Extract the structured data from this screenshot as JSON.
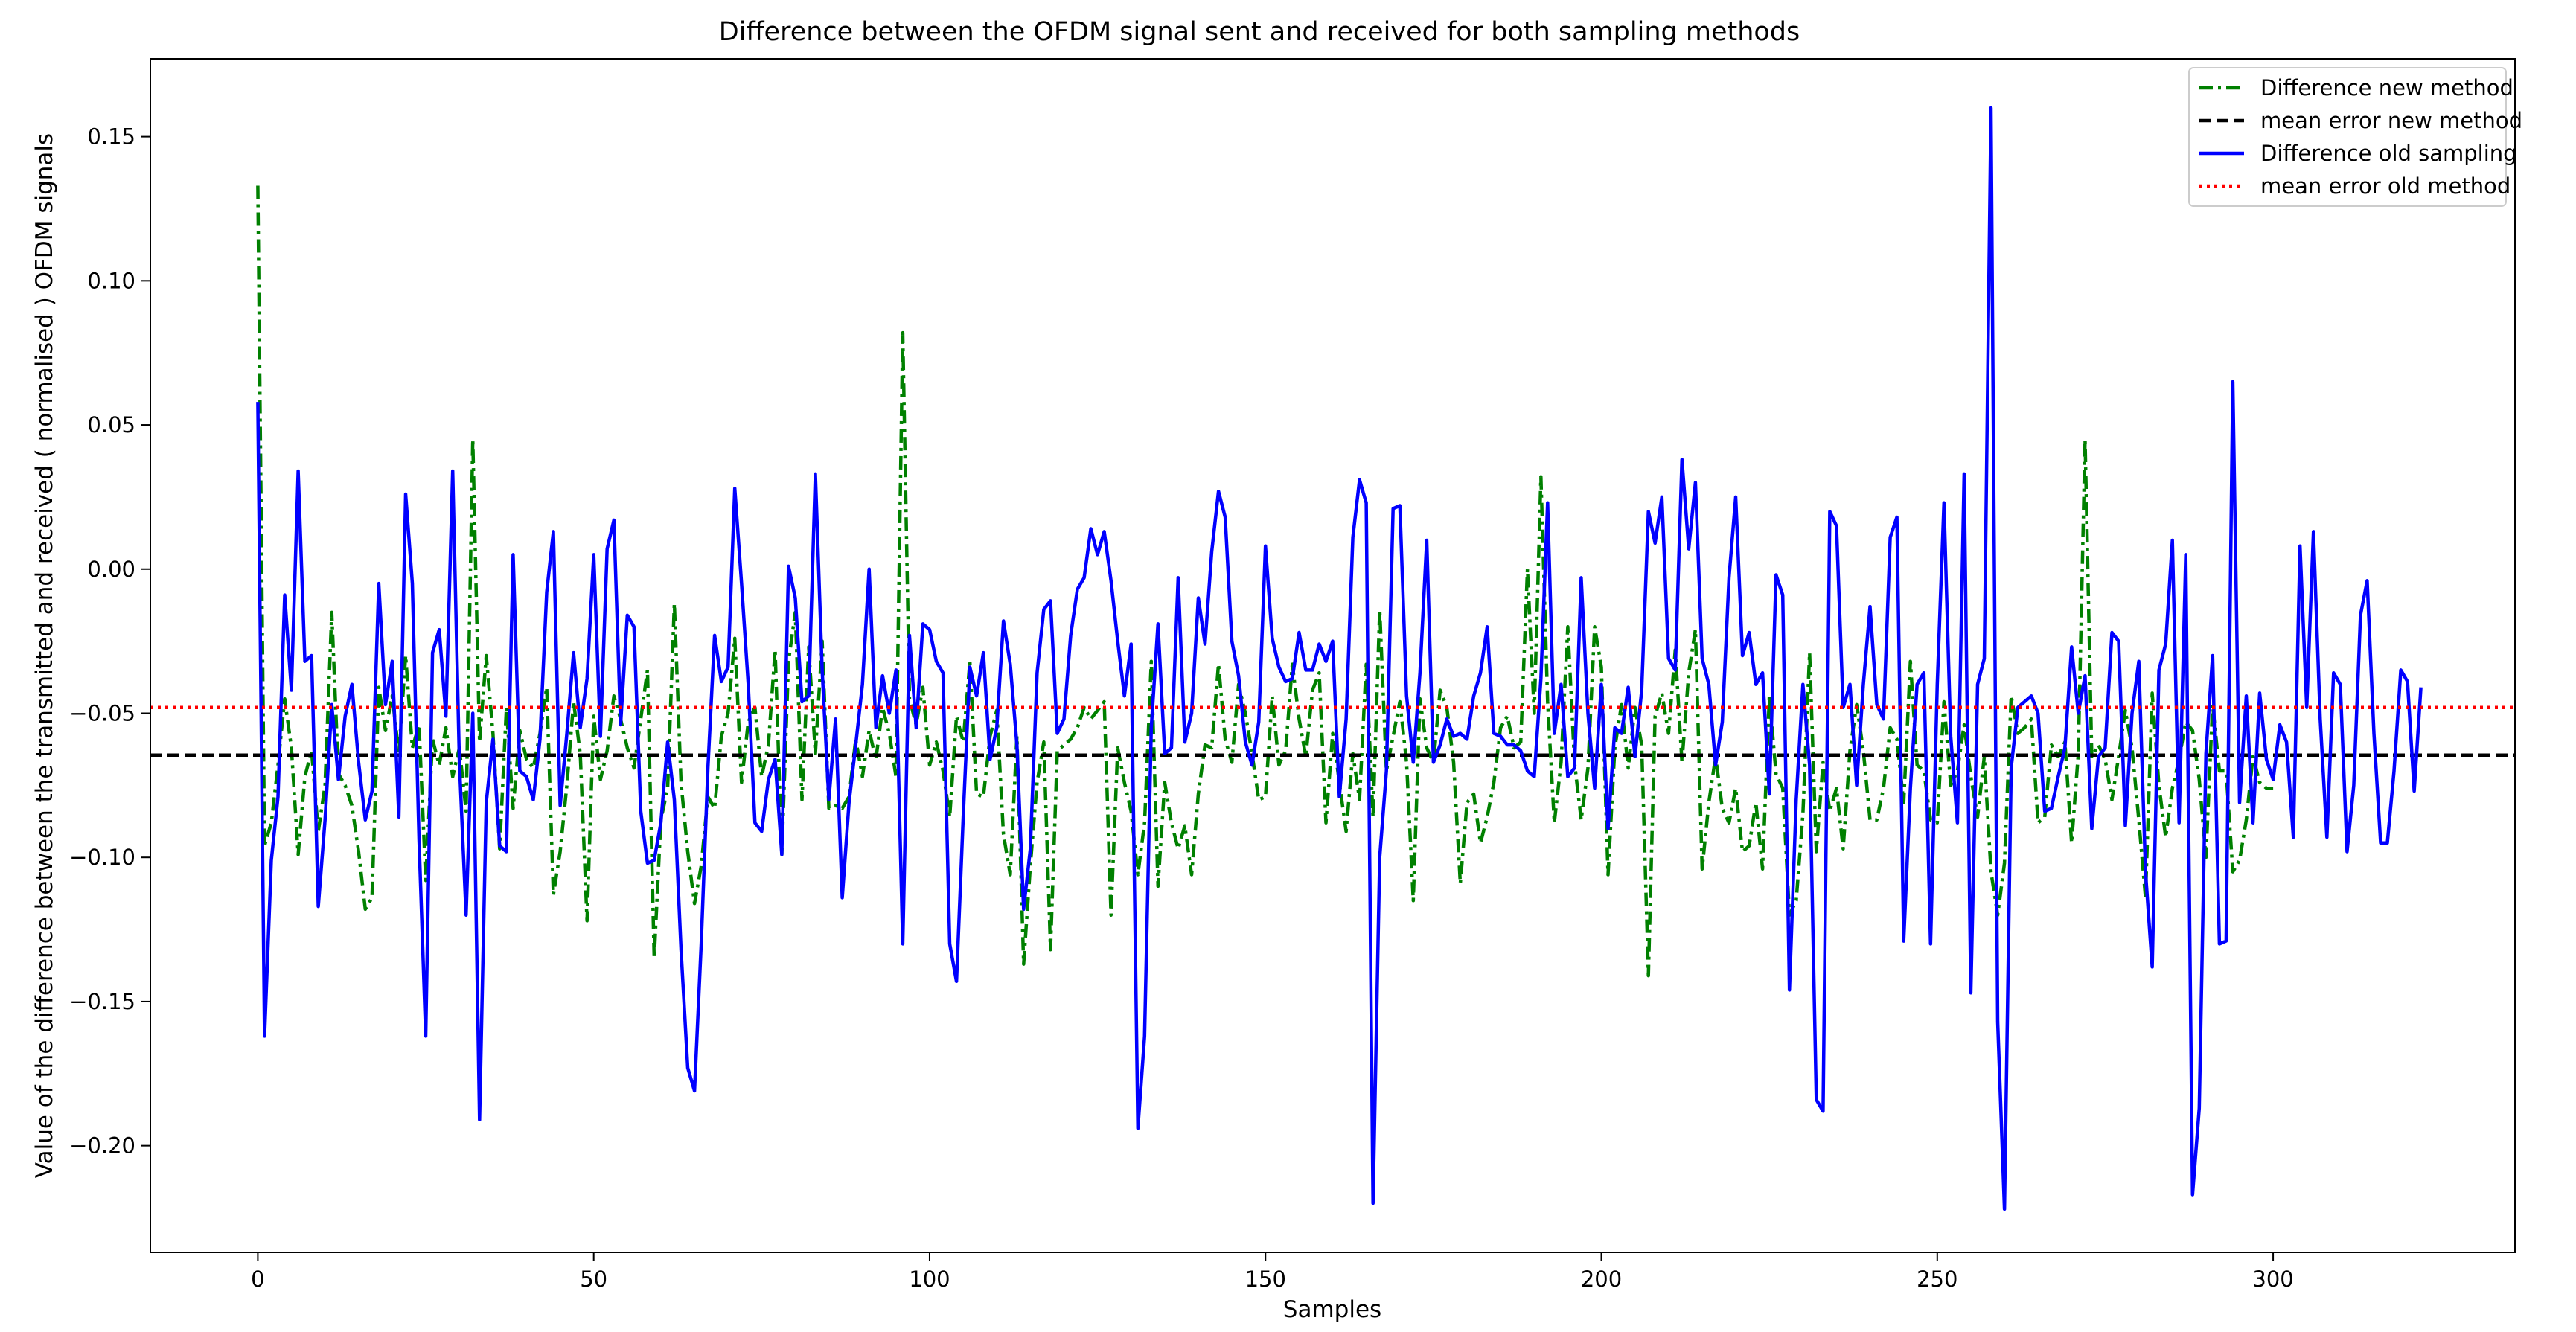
{
  "chart_data": {
    "type": "line",
    "title": "Difference between the OFDM signal sent and received for both sampling methods",
    "xlabel": "Samples",
    "ylabel": "Value of the difference between the transmitted and received ( normalised ) OFDM signals",
    "xlim": [
      -16,
      336
    ],
    "ylim": [
      -0.237,
      0.177
    ],
    "xticks": [
      0,
      50,
      100,
      150,
      200,
      250,
      300
    ],
    "xtick_labels": [
      "0",
      "50",
      "100",
      "150",
      "200",
      "250",
      "300"
    ],
    "yticks": [
      -0.2,
      -0.15,
      -0.1,
      -0.05,
      0.0,
      0.05,
      0.1,
      0.15
    ],
    "ytick_labels": [
      "−0.20",
      "−0.15",
      "−0.10",
      "−0.05",
      "0.00",
      "0.05",
      "0.10",
      "0.15"
    ],
    "grid": false,
    "legend_position": "top-right",
    "series": [
      {
        "name": "Difference new method",
        "color": "#008000",
        "style": "dash-dot",
        "x_start": 0,
        "values": [
          0.133,
          -0.096,
          -0.088,
          -0.068,
          -0.045,
          -0.062,
          -0.099,
          -0.072,
          -0.063,
          -0.091,
          -0.075,
          -0.015,
          -0.071,
          -0.075,
          -0.082,
          -0.098,
          -0.118,
          -0.114,
          -0.041,
          -0.056,
          -0.044,
          -0.064,
          -0.03,
          -0.062,
          -0.054,
          -0.108,
          -0.059,
          -0.068,
          -0.055,
          -0.072,
          -0.062,
          -0.084,
          0.045,
          -0.06,
          -0.03,
          -0.057,
          -0.097,
          -0.048,
          -0.083,
          -0.056,
          -0.066,
          -0.069,
          -0.057,
          -0.041,
          -0.113,
          -0.098,
          -0.075,
          -0.046,
          -0.064,
          -0.122,
          -0.051,
          -0.073,
          -0.063,
          -0.044,
          -0.052,
          -0.062,
          -0.069,
          -0.052,
          -0.035,
          -0.135,
          -0.087,
          -0.076,
          -0.012,
          -0.074,
          -0.098,
          -0.116,
          -0.103,
          -0.079,
          -0.083,
          -0.058,
          -0.05,
          -0.024,
          -0.074,
          -0.053,
          -0.048,
          -0.072,
          -0.061,
          -0.028,
          -0.099,
          -0.032,
          -0.015,
          -0.08,
          -0.027,
          -0.064,
          -0.025,
          -0.083,
          -0.082,
          -0.083,
          -0.079,
          -0.059,
          -0.072,
          -0.056,
          -0.066,
          -0.048,
          -0.057,
          -0.072,
          0.082,
          -0.045,
          -0.054,
          -0.041,
          -0.068,
          -0.06,
          -0.07,
          -0.086,
          -0.051,
          -0.06,
          -0.032,
          -0.078,
          -0.079,
          -0.058,
          -0.049,
          -0.092,
          -0.106,
          -0.058,
          -0.137,
          -0.103,
          -0.074,
          -0.06,
          -0.132,
          -0.063,
          -0.061,
          -0.059,
          -0.055,
          -0.048,
          -0.052,
          -0.049,
          -0.046,
          -0.12,
          -0.062,
          -0.074,
          -0.084,
          -0.106,
          -0.088,
          -0.032,
          -0.11,
          -0.074,
          -0.088,
          -0.097,
          -0.089,
          -0.106,
          -0.078,
          -0.061,
          -0.062,
          -0.033,
          -0.059,
          -0.067,
          -0.04,
          -0.05,
          -0.064,
          -0.08,
          -0.079,
          -0.044,
          -0.068,
          -0.063,
          -0.033,
          -0.052,
          -0.065,
          -0.042,
          -0.036,
          -0.088,
          -0.057,
          -0.074,
          -0.091,
          -0.064,
          -0.08,
          -0.033,
          -0.086,
          -0.014,
          -0.07,
          -0.058,
          -0.046,
          -0.067,
          -0.115,
          -0.045,
          -0.062,
          -0.067,
          -0.042,
          -0.048,
          -0.067,
          -0.109,
          -0.081,
          -0.078,
          -0.095,
          -0.086,
          -0.074,
          -0.055,
          -0.051,
          -0.062,
          -0.06,
          0.0,
          -0.05,
          0.032,
          -0.046,
          -0.088,
          -0.067,
          -0.02,
          -0.067,
          -0.087,
          -0.069,
          -0.02,
          -0.034,
          -0.106,
          -0.062,
          -0.047,
          -0.069,
          -0.048,
          -0.061,
          -0.141,
          -0.051,
          -0.043,
          -0.057,
          -0.028,
          -0.067,
          -0.036,
          -0.021,
          -0.104,
          -0.081,
          -0.065,
          -0.083,
          -0.088,
          -0.076,
          -0.098,
          -0.096,
          -0.081,
          -0.104,
          -0.044,
          -0.071,
          -0.076,
          -0.12,
          -0.115,
          -0.085,
          -0.029,
          -0.098,
          -0.067,
          -0.084,
          -0.076,
          -0.097,
          -0.063,
          -0.047,
          -0.063,
          -0.087,
          -0.087,
          -0.076,
          -0.055,
          -0.059,
          -0.081,
          -0.032,
          -0.068,
          -0.07,
          -0.087,
          -0.088,
          -0.046,
          -0.075,
          -0.07,
          -0.054,
          -0.072,
          -0.086,
          -0.065,
          -0.105,
          -0.12,
          -0.102,
          -0.044,
          -0.057,
          -0.055,
          -0.052,
          -0.088,
          -0.086,
          -0.061,
          -0.065,
          -0.06,
          -0.095,
          -0.064,
          0.045,
          -0.065,
          -0.061,
          -0.066,
          -0.08,
          -0.065,
          -0.049,
          -0.062,
          -0.087,
          -0.114,
          -0.043,
          -0.075,
          -0.093,
          -0.076,
          -0.066,
          -0.053,
          -0.056,
          -0.073,
          -0.1,
          -0.047,
          -0.07,
          -0.07,
          -0.105,
          -0.101,
          -0.087,
          -0.065,
          -0.074,
          -0.076,
          -0.076
        ]
      },
      {
        "name": "mean error new method",
        "color": "#000000",
        "style": "dashed",
        "constant": -0.0645
      },
      {
        "name": "Difference old sampling",
        "color": "#0000ff",
        "style": "solid",
        "x_start": 0,
        "values": [
          0.058,
          -0.162,
          -0.101,
          -0.079,
          -0.009,
          -0.042,
          0.034,
          -0.032,
          -0.03,
          -0.117,
          -0.087,
          -0.047,
          -0.073,
          -0.051,
          -0.04,
          -0.067,
          -0.087,
          -0.077,
          -0.005,
          -0.047,
          -0.032,
          -0.086,
          0.026,
          -0.005,
          -0.094,
          -0.162,
          -0.029,
          -0.021,
          -0.051,
          0.034,
          -0.067,
          -0.12,
          -0.05,
          -0.191,
          -0.081,
          -0.059,
          -0.096,
          -0.098,
          0.005,
          -0.07,
          -0.072,
          -0.08,
          -0.059,
          -0.008,
          0.013,
          -0.082,
          -0.057,
          -0.029,
          -0.055,
          -0.038,
          0.005,
          -0.058,
          0.007,
          0.017,
          -0.054,
          -0.016,
          -0.02,
          -0.084,
          -0.102,
          -0.101,
          -0.088,
          -0.06,
          -0.08,
          -0.132,
          -0.173,
          -0.181,
          -0.13,
          -0.069,
          -0.023,
          -0.039,
          -0.034,
          0.028,
          -0.005,
          -0.04,
          -0.088,
          -0.091,
          -0.073,
          -0.066,
          -0.099,
          0.001,
          -0.01,
          -0.046,
          -0.044,
          0.033,
          -0.035,
          -0.08,
          -0.052,
          -0.114,
          -0.081,
          -0.061,
          -0.04,
          0.0,
          -0.055,
          -0.037,
          -0.05,
          -0.035,
          -0.13,
          -0.023,
          -0.055,
          -0.019,
          -0.021,
          -0.032,
          -0.036,
          -0.13,
          -0.143,
          -0.086,
          -0.034,
          -0.044,
          -0.029,
          -0.066,
          -0.055,
          -0.018,
          -0.033,
          -0.061,
          -0.118,
          -0.097,
          -0.036,
          -0.014,
          -0.011,
          -0.057,
          -0.052,
          -0.023,
          -0.007,
          -0.003,
          0.014,
          0.005,
          0.013,
          -0.004,
          -0.025,
          -0.044,
          -0.026,
          -0.194,
          -0.162,
          -0.055,
          -0.019,
          -0.064,
          -0.062,
          -0.003,
          -0.06,
          -0.05,
          -0.01,
          -0.026,
          0.006,
          0.027,
          0.018,
          -0.025,
          -0.037,
          -0.06,
          -0.068,
          -0.053,
          0.008,
          -0.024,
          -0.034,
          -0.039,
          -0.038,
          -0.022,
          -0.035,
          -0.035,
          -0.026,
          -0.032,
          -0.025,
          -0.079,
          -0.052,
          0.011,
          0.031,
          0.023,
          -0.22,
          -0.1,
          -0.07,
          0.021,
          0.022,
          -0.044,
          -0.067,
          -0.036,
          0.01,
          -0.067,
          -0.061,
          -0.052,
          -0.058,
          -0.057,
          -0.059,
          -0.044,
          -0.036,
          -0.02,
          -0.057,
          -0.058,
          -0.061,
          -0.061,
          -0.063,
          -0.07,
          -0.072,
          -0.038,
          0.023,
          -0.057,
          -0.04,
          -0.072,
          -0.069,
          -0.003,
          -0.05,
          -0.076,
          -0.04,
          -0.09,
          -0.055,
          -0.057,
          -0.041,
          -0.065,
          -0.042,
          0.02,
          0.009,
          0.025,
          -0.031,
          -0.035,
          0.038,
          0.007,
          0.03,
          -0.031,
          -0.04,
          -0.068,
          -0.053,
          -0.003,
          0.025,
          -0.03,
          -0.022,
          -0.04,
          -0.036,
          -0.078,
          -0.002,
          -0.009,
          -0.146,
          -0.08,
          -0.04,
          -0.068,
          -0.184,
          -0.188,
          0.02,
          0.015,
          -0.048,
          -0.04,
          -0.075,
          -0.04,
          -0.013,
          -0.047,
          -0.052,
          0.011,
          0.018,
          -0.129,
          -0.076,
          -0.04,
          -0.036,
          -0.13,
          -0.04,
          0.023,
          -0.058,
          -0.088,
          0.033,
          -0.147,
          -0.04,
          -0.031,
          0.16,
          -0.157,
          -0.222,
          -0.069,
          -0.048,
          -0.046,
          -0.044,
          -0.05,
          -0.084,
          -0.083,
          -0.072,
          -0.062,
          -0.027,
          -0.05,
          -0.037,
          -0.09,
          -0.065,
          -0.062,
          -0.022,
          -0.025,
          -0.089,
          -0.05,
          -0.032,
          -0.105,
          -0.138,
          -0.035,
          -0.026,
          0.01,
          -0.088,
          0.005,
          -0.217,
          -0.187,
          -0.064,
          -0.03,
          -0.13,
          -0.129,
          0.065,
          -0.081,
          -0.044,
          -0.088,
          -0.043,
          -0.066,
          -0.073,
          -0.054,
          -0.06,
          -0.093,
          0.008,
          -0.048,
          0.013,
          -0.052,
          -0.093,
          -0.036,
          -0.04,
          -0.098,
          -0.075,
          -0.016,
          -0.004,
          -0.057,
          -0.095,
          -0.095,
          -0.07,
          -0.035,
          -0.039,
          -0.077,
          -0.041
        ]
      },
      {
        "name": "mean error old method",
        "color": "#ff0000",
        "style": "dotted",
        "constant": -0.048
      }
    ]
  }
}
